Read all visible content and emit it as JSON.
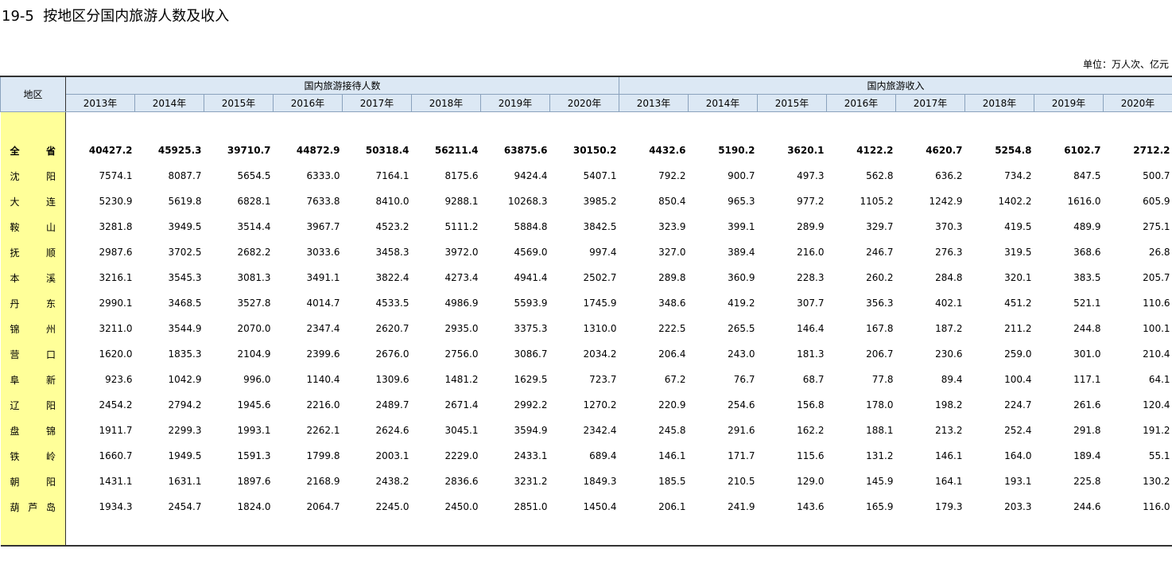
{
  "title": "19-5  按地区分国内旅游人数及收入",
  "unit": "单位：万人次、亿元",
  "table": {
    "region_header": "地区",
    "groups": [
      {
        "name": "国内旅游接待人数",
        "years": [
          "2013年",
          "2014年",
          "2015年",
          "2016年",
          "2017年",
          "2018年",
          "2019年",
          "2020年"
        ]
      },
      {
        "name": "国内旅游收入",
        "years": [
          "2013年",
          "2014年",
          "2015年",
          "2016年",
          "2017年",
          "2018年",
          "2019年",
          "2020年"
        ]
      }
    ],
    "rows": [
      {
        "region": "全省",
        "values": [
          "40427.2",
          "45925.3",
          "39710.7",
          "44872.9",
          "50318.4",
          "56211.4",
          "63875.6",
          "30150.2",
          "4432.6",
          "5190.2",
          "3620.1",
          "4122.2",
          "4620.7",
          "5254.8",
          "6102.7",
          "2712.2"
        ]
      },
      {
        "region": "沈阳",
        "values": [
          "7574.1",
          "8087.7",
          "5654.5",
          "6333.0",
          "7164.1",
          "8175.6",
          "9424.4",
          "5407.1",
          "792.2",
          "900.7",
          "497.3",
          "562.8",
          "636.2",
          "734.2",
          "847.5",
          "500.7"
        ]
      },
      {
        "region": "大连",
        "values": [
          "5230.9",
          "5619.8",
          "6828.1",
          "7633.8",
          "8410.0",
          "9288.1",
          "10268.3",
          "3985.2",
          "850.4",
          "965.3",
          "977.2",
          "1105.2",
          "1242.9",
          "1402.2",
          "1616.0",
          "605.9"
        ]
      },
      {
        "region": "鞍山",
        "values": [
          "3281.8",
          "3949.5",
          "3514.4",
          "3967.7",
          "4523.2",
          "5111.2",
          "5884.8",
          "3842.5",
          "323.9",
          "399.1",
          "289.9",
          "329.7",
          "370.3",
          "419.5",
          "489.9",
          "275.1"
        ]
      },
      {
        "region": "抚顺",
        "values": [
          "2987.6",
          "3702.5",
          "2682.2",
          "3033.6",
          "3458.3",
          "3972.0",
          "4569.0",
          "997.4",
          "327.0",
          "389.4",
          "216.0",
          "246.7",
          "276.3",
          "319.5",
          "368.6",
          "26.8"
        ]
      },
      {
        "region": "本溪",
        "values": [
          "3216.1",
          "3545.3",
          "3081.3",
          "3491.1",
          "3822.4",
          "4273.4",
          "4941.4",
          "2502.7",
          "289.8",
          "360.9",
          "228.3",
          "260.2",
          "284.8",
          "320.1",
          "383.5",
          "205.7"
        ]
      },
      {
        "region": "丹东",
        "values": [
          "2990.1",
          "3468.5",
          "3527.8",
          "4014.7",
          "4533.5",
          "4986.9",
          "5593.9",
          "1745.9",
          "348.6",
          "419.2",
          "307.7",
          "356.3",
          "402.1",
          "451.2",
          "521.1",
          "110.6"
        ]
      },
      {
        "region": "锦州",
        "values": [
          "3211.0",
          "3544.9",
          "2070.0",
          "2347.4",
          "2620.7",
          "2935.0",
          "3375.3",
          "1310.0",
          "222.5",
          "265.5",
          "146.4",
          "167.8",
          "187.2",
          "211.2",
          "244.8",
          "100.1"
        ]
      },
      {
        "region": "营口",
        "values": [
          "1620.0",
          "1835.3",
          "2104.9",
          "2399.6",
          "2676.0",
          "2756.0",
          "3086.7",
          "2034.2",
          "206.4",
          "243.0",
          "181.3",
          "206.7",
          "230.6",
          "259.0",
          "301.0",
          "210.4"
        ]
      },
      {
        "region": "阜新",
        "values": [
          "923.6",
          "1042.9",
          "996.0",
          "1140.4",
          "1309.6",
          "1481.2",
          "1629.5",
          "723.7",
          "67.2",
          "76.7",
          "68.7",
          "77.8",
          "89.4",
          "100.4",
          "117.1",
          "64.1"
        ]
      },
      {
        "region": "辽阳",
        "values": [
          "2454.2",
          "2794.2",
          "1945.6",
          "2216.0",
          "2489.7",
          "2671.4",
          "2992.2",
          "1270.2",
          "220.9",
          "254.6",
          "156.8",
          "178.0",
          "198.2",
          "224.7",
          "261.6",
          "120.4"
        ]
      },
      {
        "region": "盘锦",
        "values": [
          "1911.7",
          "2299.3",
          "1993.1",
          "2262.1",
          "2624.6",
          "3045.1",
          "3594.9",
          "2342.4",
          "245.8",
          "291.6",
          "162.2",
          "188.1",
          "213.2",
          "252.4",
          "291.8",
          "191.2"
        ]
      },
      {
        "region": "铁岭",
        "values": [
          "1660.7",
          "1949.5",
          "1591.3",
          "1799.8",
          "2003.1",
          "2229.0",
          "2433.1",
          "689.4",
          "146.1",
          "171.7",
          "115.6",
          "131.2",
          "146.1",
          "164.0",
          "189.4",
          "55.1"
        ]
      },
      {
        "region": "朝阳",
        "values": [
          "1431.1",
          "1631.1",
          "1897.6",
          "2168.9",
          "2438.2",
          "2836.6",
          "3231.2",
          "1849.3",
          "185.5",
          "210.5",
          "129.0",
          "145.9",
          "164.1",
          "193.1",
          "225.8",
          "130.2"
        ]
      },
      {
        "region": "葫芦岛",
        "values": [
          "1934.3",
          "2454.7",
          "1824.0",
          "2064.7",
          "2245.0",
          "2450.0",
          "2851.0",
          "1450.4",
          "206.1",
          "241.9",
          "143.6",
          "165.9",
          "179.3",
          "203.3",
          "244.6",
          "116.0"
        ]
      }
    ]
  }
}
